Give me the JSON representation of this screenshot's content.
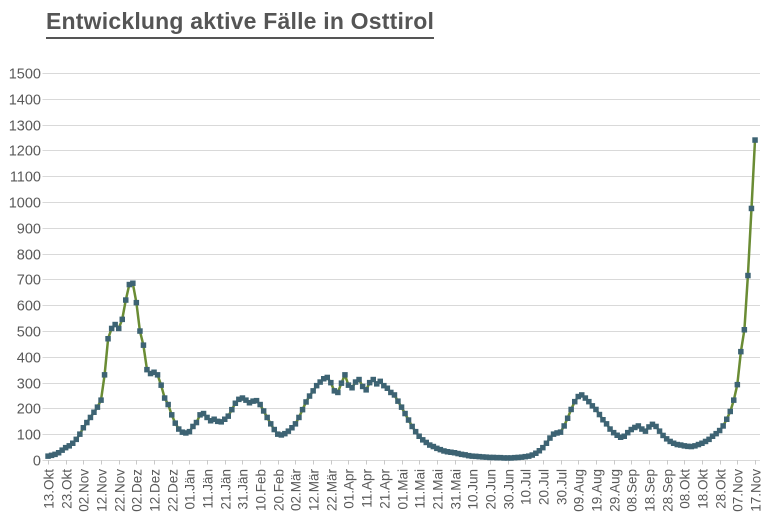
{
  "title": "Entwicklung aktive Fälle in Osttirol",
  "colors": {
    "title_text": "#555555",
    "axis_text": "#595959",
    "grid": "#d9d9d9",
    "tick": "#c9c9c9",
    "line": "#6a8c34",
    "marker": "#3d6373",
    "background": "#ffffff"
  },
  "chart_data": {
    "type": "line",
    "title": "Entwicklung aktive Fälle in Osttirol",
    "xlabel": "",
    "ylabel": "",
    "ylim": [
      0,
      1500
    ],
    "ytick_step": 100,
    "grid": "horizontal-only",
    "legend": "none",
    "marker_shape": "square",
    "x_tick_interval_days": 10,
    "x_tick_labels": [
      "13.Okt",
      "23.Okt",
      "02.Nov",
      "12.Nov",
      "22.Nov",
      "02.Dez",
      "12.Dez",
      "22.Dez",
      "01.Jän",
      "11.Jän",
      "21.Jän",
      "31.Jän",
      "10.Feb",
      "20.Feb",
      "02.Mär",
      "12.Mär",
      "22.Mär",
      "01.Apr",
      "11.Apr",
      "21.Apr",
      "01.Mai",
      "11.Mai",
      "21.Mai",
      "31.Mai",
      "10.Jun",
      "20.Jun",
      "30.Jun",
      "10.Jul",
      "20.Jul",
      "30.Jul",
      "09.Aug",
      "19.Aug",
      "29.Aug",
      "08.Sep",
      "18.Sep",
      "28.Sep",
      "08.Okt",
      "18.Okt",
      "28.Okt",
      "07.Nov",
      "17.Nov"
    ],
    "series": [
      {
        "name": "aktive Fälle",
        "interval_days": 2,
        "start_label": "13.Okt",
        "end_label": "17.Nov",
        "values": [
          15,
          18,
          22,
          28,
          38,
          48,
          55,
          65,
          80,
          100,
          125,
          145,
          165,
          185,
          205,
          232,
          330,
          470,
          510,
          525,
          510,
          545,
          620,
          680,
          685,
          610,
          500,
          445,
          350,
          335,
          340,
          330,
          290,
          240,
          215,
          175,
          143,
          120,
          108,
          105,
          110,
          130,
          145,
          175,
          180,
          165,
          152,
          158,
          150,
          148,
          158,
          170,
          195,
          220,
          235,
          240,
          232,
          222,
          228,
          230,
          215,
          190,
          165,
          140,
          118,
          100,
          97,
          102,
          112,
          125,
          140,
          165,
          195,
          225,
          248,
          268,
          288,
          302,
          315,
          320,
          300,
          268,
          262,
          298,
          330,
          290,
          280,
          302,
          312,
          285,
          272,
          300,
          312,
          295,
          305,
          288,
          278,
          262,
          252,
          228,
          205,
          180,
          155,
          130,
          110,
          92,
          78,
          68,
          58,
          52,
          45,
          40,
          35,
          32,
          30,
          28,
          25,
          22,
          20,
          17,
          15,
          14,
          13,
          12,
          11,
          10,
          10,
          9,
          9,
          8,
          8,
          8,
          9,
          10,
          11,
          13,
          15,
          19,
          26,
          36,
          48,
          65,
          85,
          100,
          105,
          108,
          132,
          162,
          196,
          226,
          246,
          252,
          240,
          226,
          210,
          196,
          176,
          156,
          140,
          120,
          106,
          96,
          88,
          92,
          106,
          118,
          126,
          132,
          120,
          112,
          128,
          138,
          130,
          112,
          95,
          82,
          72,
          65,
          60,
          58,
          55,
          53,
          52,
          55,
          60,
          65,
          72,
          80,
          92,
          102,
          114,
          132,
          158,
          188,
          232,
          292,
          420,
          505,
          715,
          975,
          1240
        ]
      }
    ]
  }
}
